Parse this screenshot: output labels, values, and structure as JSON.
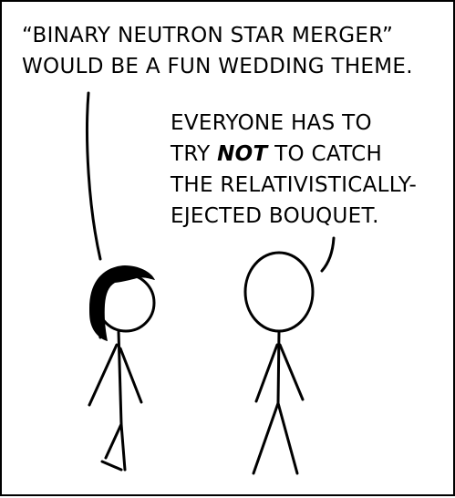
{
  "comic": {
    "left_speech": {
      "line1": "“BINARY NEUTRON STAR MERGER”",
      "line2": "WOULD BE A FUN WEDDING THEME."
    },
    "right_speech": {
      "line1": "EVERYONE HAS TO",
      "line2_prefix": "TRY ",
      "line2_emphasis": "NOT",
      "line2_suffix": " TO CATCH",
      "line3": "THE RELATIVISTICALLY-",
      "line4": "EJECTED BOUQUET."
    }
  },
  "colors": {
    "ink": "#000000",
    "background": "#ffffff"
  }
}
